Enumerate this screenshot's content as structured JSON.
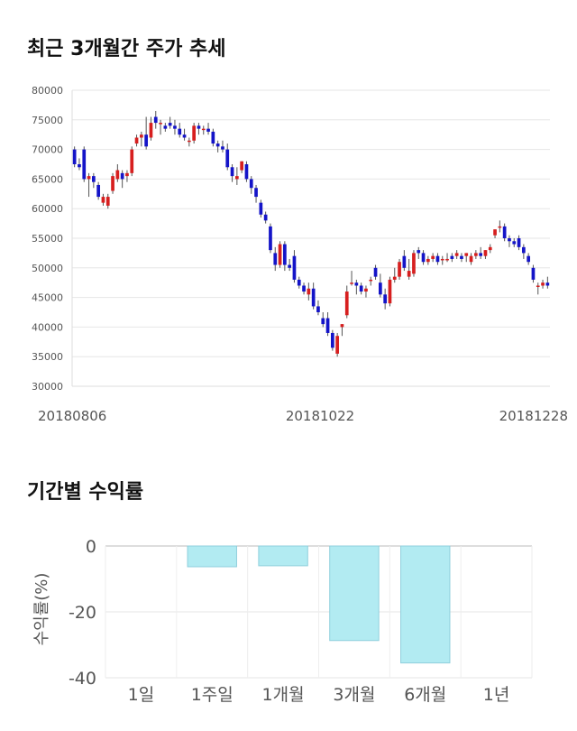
{
  "section_titles": {
    "price": "최근 3개월간 주가 추세",
    "returns": "기간별 수익률"
  },
  "chart_data": [
    {
      "type": "candlestick",
      "ylim": [
        30000,
        80000
      ],
      "y_ticks": [
        "80000",
        "75000",
        "70000",
        "65000",
        "60000",
        "55000",
        "50000",
        "45000",
        "40000",
        "35000",
        "30000"
      ],
      "x_tick_labels": [
        "20180806",
        "20181022",
        "20181228"
      ],
      "grid": true,
      "colors": {
        "up": "#d71f1f",
        "down": "#1414c8",
        "wick": "#555555"
      },
      "candles": [
        [
          70000,
          70500,
          67000,
          67500
        ],
        [
          67500,
          68500,
          66500,
          67000
        ],
        [
          70000,
          70500,
          64500,
          65000
        ],
        [
          65000,
          66000,
          62000,
          65500
        ],
        [
          65500,
          66000,
          63500,
          64500
        ],
        [
          64000,
          64500,
          61500,
          62000
        ],
        [
          61000,
          62500,
          60500,
          62000
        ],
        [
          60500,
          62500,
          60000,
          62000
        ],
        [
          63000,
          66000,
          62500,
          65500
        ],
        [
          65000,
          67500,
          64500,
          66500
        ],
        [
          66000,
          66500,
          63500,
          65000
        ],
        [
          65500,
          66500,
          64500,
          66000
        ],
        [
          66000,
          70500,
          65500,
          70000
        ],
        [
          71000,
          72500,
          70500,
          72000
        ],
        [
          72000,
          73000,
          70500,
          72500
        ],
        [
          72500,
          75500,
          70000,
          70500
        ],
        [
          72000,
          75500,
          71500,
          74500
        ],
        [
          75500,
          76500,
          73500,
          74500
        ],
        [
          74500,
          75000,
          72500,
          74500
        ],
        [
          74000,
          74500,
          73000,
          73500
        ],
        [
          74500,
          75500,
          73500,
          74000
        ],
        [
          74000,
          75000,
          72500,
          73500
        ],
        [
          73500,
          74500,
          72000,
          72500
        ],
        [
          72500,
          73500,
          71500,
          72000
        ],
        [
          71500,
          72000,
          70500,
          71500
        ],
        [
          71500,
          74500,
          71000,
          74000
        ],
        [
          74000,
          74500,
          72500,
          73500
        ],
        [
          73500,
          74000,
          72500,
          73500
        ],
        [
          73500,
          74500,
          72500,
          73000
        ],
        [
          73000,
          73500,
          70500,
          71000
        ],
        [
          71000,
          71500,
          69500,
          70500
        ],
        [
          70500,
          71500,
          69500,
          70000
        ],
        [
          70000,
          71000,
          66500,
          67000
        ],
        [
          67000,
          67500,
          64500,
          65500
        ],
        [
          65000,
          67000,
          64000,
          65500
        ],
        [
          66500,
          68000,
          66000,
          68000
        ],
        [
          67500,
          68000,
          64500,
          65000
        ],
        [
          65000,
          65500,
          62500,
          63500
        ],
        [
          63500,
          64000,
          61000,
          62000
        ],
        [
          61000,
          61500,
          58500,
          59000
        ],
        [
          59000,
          59500,
          57500,
          58000
        ],
        [
          57000,
          57500,
          52500,
          53000
        ],
        [
          52500,
          53500,
          49500,
          50500
        ],
        [
          50500,
          54500,
          50000,
          54000
        ],
        [
          54000,
          54500,
          49500,
          50500
        ],
        [
          50500,
          51500,
          49500,
          50000
        ],
        [
          52000,
          53000,
          47500,
          48000
        ],
        [
          48000,
          48500,
          46500,
          47000
        ],
        [
          47000,
          47500,
          45500,
          46000
        ],
        [
          45500,
          47500,
          44500,
          46500
        ],
        [
          46500,
          47500,
          43000,
          43500
        ],
        [
          43500,
          44500,
          42000,
          42500
        ],
        [
          41500,
          42500,
          40000,
          40500
        ],
        [
          41500,
          42500,
          38500,
          39000
        ],
        [
          39000,
          39500,
          36000,
          36500
        ],
        [
          35500,
          39000,
          35000,
          38500
        ],
        [
          40000,
          40500,
          38500,
          40500
        ],
        [
          42000,
          47000,
          41500,
          46000
        ],
        [
          47500,
          49500,
          47000,
          47500
        ],
        [
          47500,
          48000,
          45500,
          47000
        ],
        [
          47000,
          47500,
          45500,
          46000
        ],
        [
          46000,
          47000,
          45000,
          46500
        ],
        [
          48000,
          48500,
          47000,
          48000
        ],
        [
          50000,
          50500,
          48000,
          48500
        ],
        [
          47500,
          49000,
          45000,
          45500
        ],
        [
          45500,
          46500,
          43000,
          44000
        ],
        [
          44000,
          48500,
          43500,
          48000
        ],
        [
          48000,
          50000,
          47500,
          48500
        ],
        [
          48500,
          51500,
          48000,
          51000
        ],
        [
          52000,
          53000,
          49500,
          50000
        ],
        [
          48500,
          51500,
          48000,
          49500
        ],
        [
          49000,
          53000,
          48500,
          52500
        ],
        [
          53000,
          53500,
          51500,
          52500
        ],
        [
          52500,
          53000,
          50500,
          51000
        ],
        [
          51000,
          52000,
          50500,
          51500
        ],
        [
          51500,
          52500,
          51000,
          52000
        ],
        [
          52000,
          52500,
          50500,
          51000
        ],
        [
          51500,
          52000,
          50500,
          51500
        ],
        [
          51500,
          52500,
          51000,
          51500
        ],
        [
          52000,
          52500,
          51000,
          51500
        ],
        [
          52000,
          53000,
          51500,
          52500
        ],
        [
          52000,
          52500,
          51000,
          51500
        ],
        [
          52000,
          52500,
          51000,
          52500
        ],
        [
          51000,
          52500,
          50500,
          52000
        ],
        [
          52000,
          53000,
          51500,
          52500
        ],
        [
          52500,
          53500,
          51500,
          52000
        ],
        [
          52000,
          53000,
          51500,
          53000
        ],
        [
          53000,
          54000,
          52500,
          53500
        ],
        [
          55500,
          56500,
          55000,
          56500
        ],
        [
          57000,
          58000,
          56000,
          57000
        ],
        [
          57000,
          57500,
          54500,
          55000
        ],
        [
          55000,
          55500,
          53500,
          54500
        ],
        [
          54500,
          55000,
          53500,
          54000
        ],
        [
          55000,
          55500,
          53000,
          53500
        ],
        [
          53500,
          54000,
          51500,
          52500
        ],
        [
          52000,
          52500,
          50500,
          51000
        ],
        [
          50000,
          50500,
          47500,
          48000
        ],
        [
          47000,
          47500,
          45500,
          47000
        ],
        [
          47000,
          48000,
          46500,
          47500
        ],
        [
          47500,
          48500,
          46500,
          47000
        ]
      ]
    },
    {
      "type": "bar",
      "categories": [
        "1일",
        "1주일",
        "1개월",
        "3개월",
        "6개월",
        "1년"
      ],
      "values": [
        0,
        -6.3,
        -6.0,
        -28.7,
        -35.5,
        null
      ],
      "ylabel": "수익률(%)",
      "ylim": [
        -40,
        0
      ],
      "y_ticks": [
        "0",
        "-20",
        "-40"
      ],
      "grid": true,
      "colors": {
        "fill": "#b2ebf2",
        "stroke": "#8fcfdc"
      }
    }
  ]
}
